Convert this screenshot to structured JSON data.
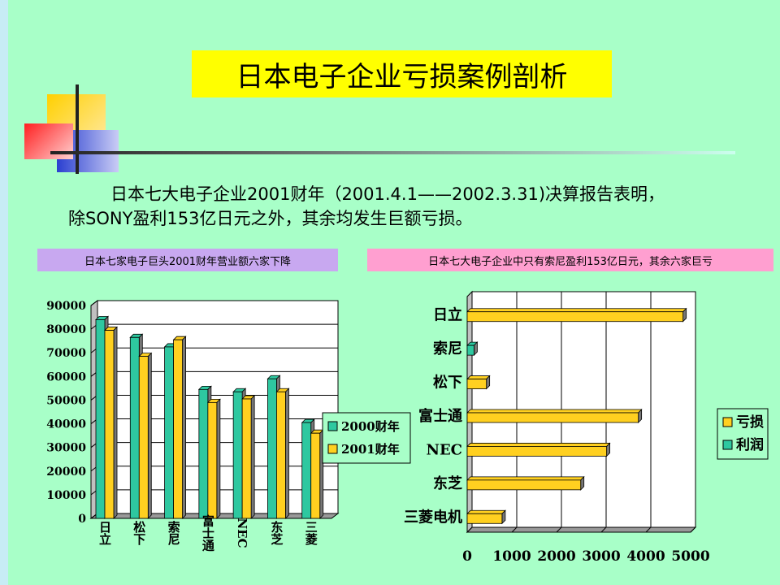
{
  "title": "日本电子企业亏损案例剖析",
  "paragraph": {
    "line1": "日本七大电子企业2001财年（2001.4.1——2002.3.31)决算报告表明，",
    "line2": "除SONY盈利153亿日元之外，其余均发生巨额亏损。"
  },
  "label_left": "日本七家电子巨头2001财年营业额六家下降",
  "label_right": "日本七大电子企业中只有索尼盈利153亿日元，其余六家巨亏",
  "colors": {
    "background": "#a8ffc8",
    "series2000": "#2ec8a0",
    "series2001": "#ffd020",
    "title_bg": "#ffff00"
  },
  "chart_data": [
    {
      "type": "bar",
      "title": "",
      "categories": [
        "日立",
        "松下",
        "索尼",
        "富士通",
        "NEC",
        "东芝",
        "三菱"
      ],
      "series": [
        {
          "name": "2000财年",
          "values": [
            84000,
            76500,
            72500,
            54500,
            53500,
            59000,
            40500
          ]
        },
        {
          "name": "2001财年",
          "values": [
            79500,
            68500,
            75500,
            49000,
            50500,
            53500,
            36000
          ]
        }
      ],
      "yticks": [
        "90000",
        "80000",
        "70000",
        "60000",
        "50000",
        "40000",
        "30000",
        "20000",
        "10000",
        "0"
      ],
      "ylim": [
        0,
        90000
      ],
      "legend": "right"
    },
    {
      "type": "bar",
      "orientation": "horizontal",
      "categories": [
        "日立",
        "索尼",
        "松下",
        "富士通",
        "NEC",
        "东芝",
        "三菱电机"
      ],
      "series": [
        {
          "name": "亏损",
          "values": [
            4830,
            0,
            430,
            3830,
            3120,
            2540,
            780
          ]
        },
        {
          "name": "利润",
          "values": [
            0,
            153,
            0,
            0,
            0,
            0,
            0
          ]
        }
      ],
      "xticks": [
        "0",
        "1000",
        "2000",
        "3000",
        "4000",
        "5000"
      ],
      "xlim": [
        0,
        5000
      ],
      "legend": "right"
    }
  ]
}
